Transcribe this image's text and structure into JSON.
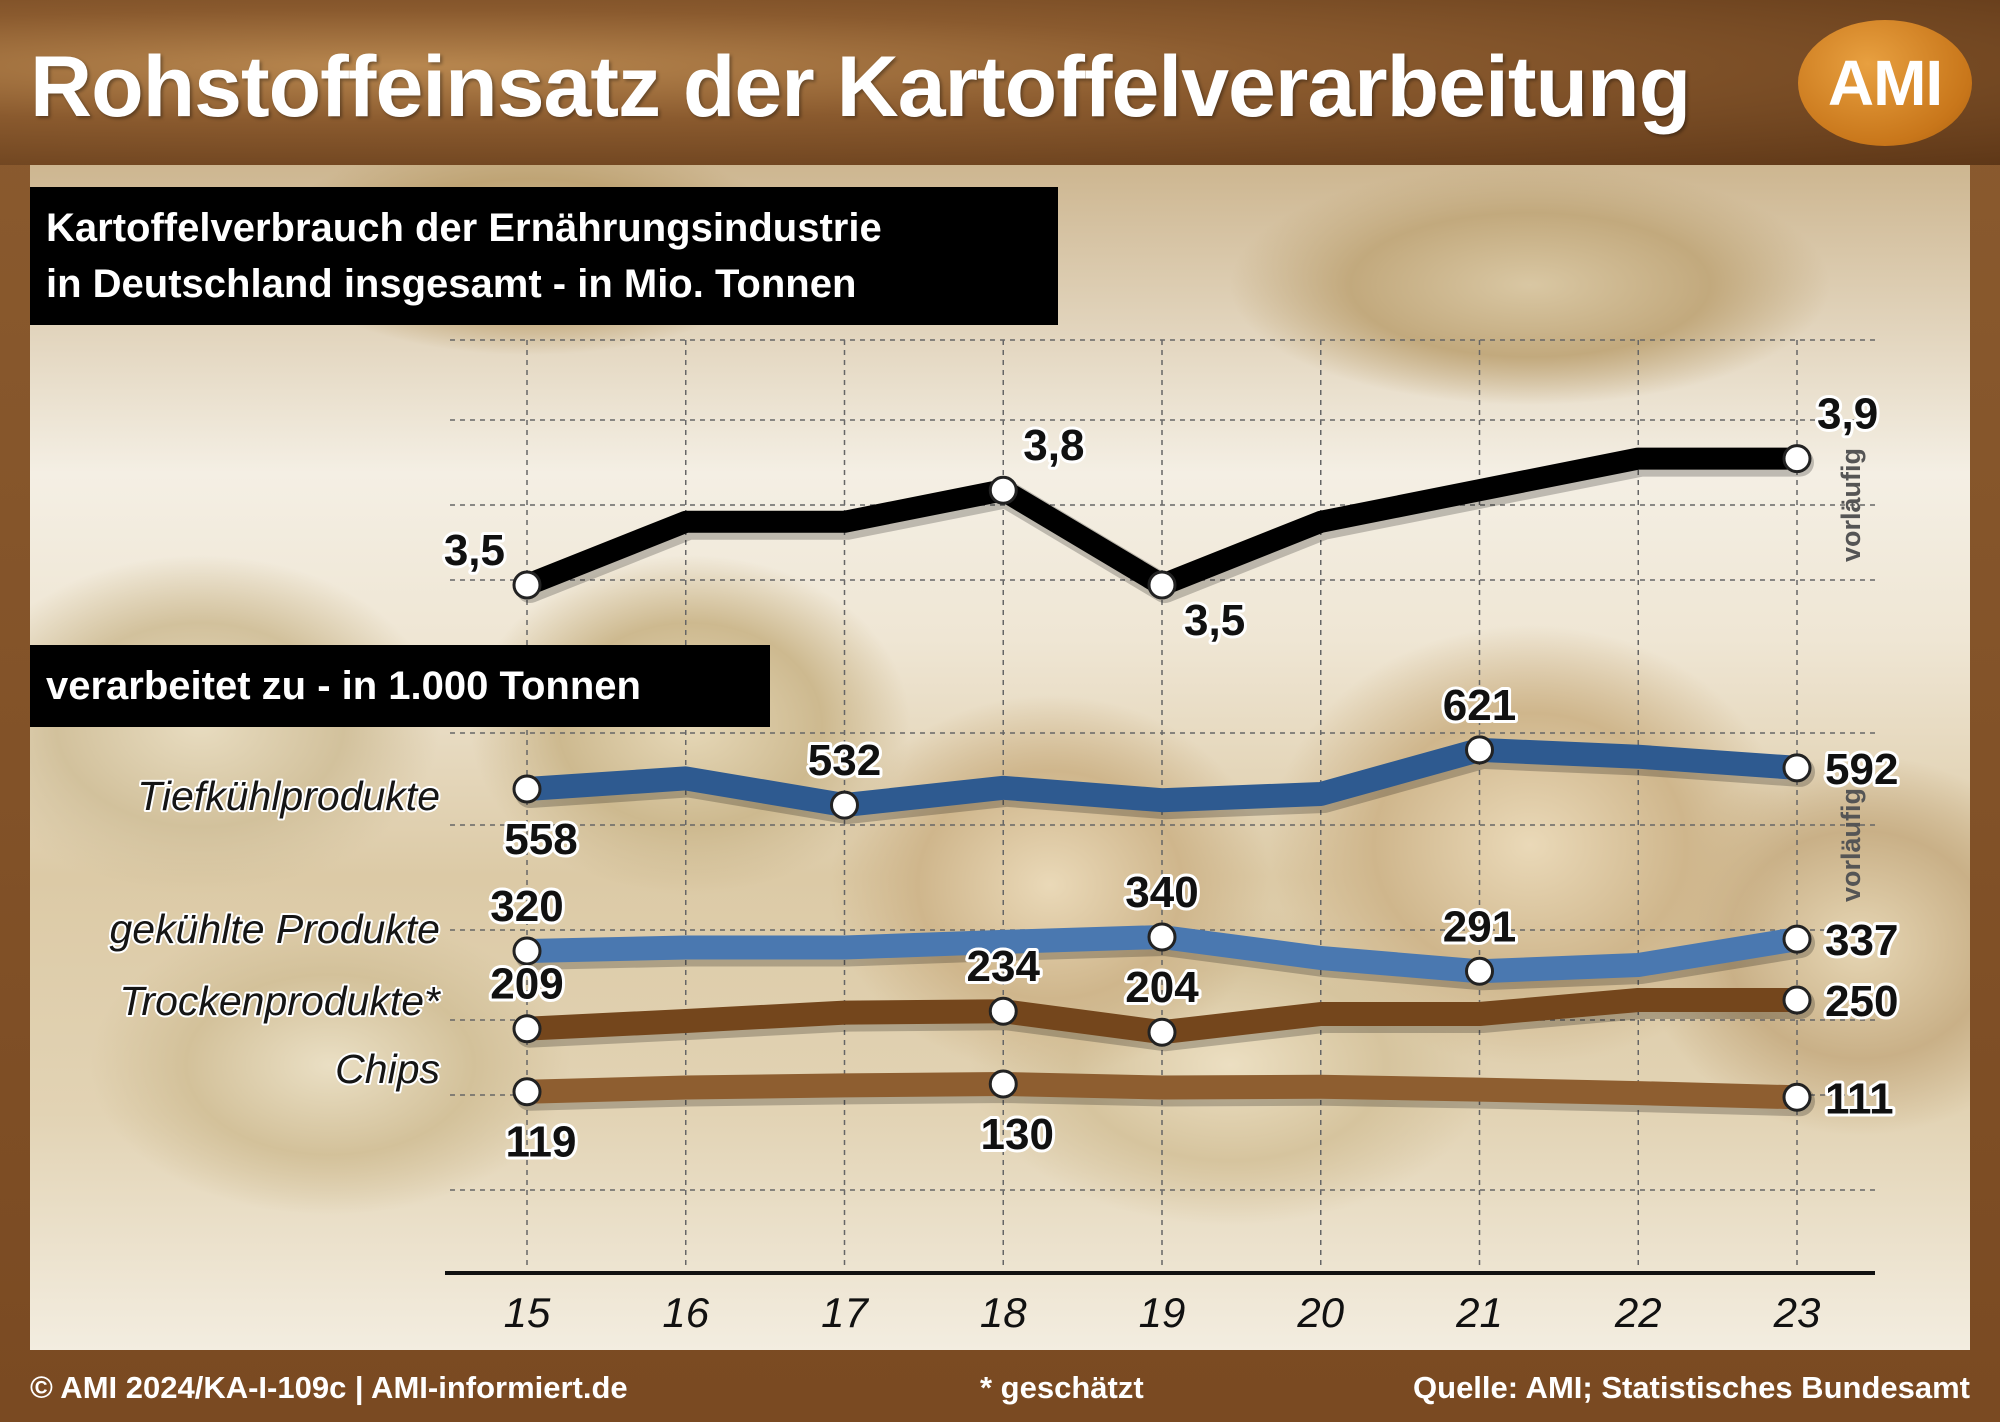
{
  "title": "Rohstoffeinsatz der Kartoffelverarbeitung",
  "logo": "AMI",
  "box_total": {
    "line1": "Kartoffelverbrauch der Ernährungsindustrie",
    "line2": "in Deutschland insgesamt - in Mio. Tonnen"
  },
  "box_processed": "verarbeitet zu - in 1.000 Tonnen",
  "footer": {
    "left": "© AMI 2024/KA-I-109c | AMI-informiert.de",
    "center": "* geschätzt",
    "right": "Quelle: AMI; Statistisches Bundesamt"
  },
  "colors": {
    "total": "#000000",
    "tiefkuehl": "#2e5a90",
    "gekuehlt": "#4a78b0",
    "trocken": "#74461c",
    "chips": "#8e5e30"
  },
  "chart_data": {
    "type": "line",
    "x": [
      "15",
      "16",
      "17",
      "18",
      "19",
      "20",
      "21",
      "22",
      "23"
    ],
    "provisional_note": "vorläufig",
    "total": {
      "values": [
        3.5,
        3.7,
        3.7,
        3.8,
        3.5,
        3.7,
        3.8,
        3.9,
        3.9
      ],
      "labels": [
        {
          "index": 0,
          "text": "3,5",
          "pos": "left"
        },
        {
          "index": 3,
          "text": "3,8",
          "pos": "above-right"
        },
        {
          "index": 4,
          "text": "3,5",
          "pos": "below-right"
        },
        {
          "index": 8,
          "text": "3,9",
          "pos": "above-right"
        }
      ],
      "marker_indices": [
        0,
        3,
        4,
        8
      ]
    },
    "series": [
      {
        "key": "tiefkuehl",
        "name": "Tiefkühlprodukte",
        "values": [
          558,
          575,
          532,
          560,
          540,
          550,
          621,
          610,
          592
        ],
        "labels": [
          {
            "index": 0,
            "text": "558",
            "pos": "below"
          },
          {
            "index": 2,
            "text": "532",
            "pos": "above"
          },
          {
            "index": 6,
            "text": "621",
            "pos": "above"
          },
          {
            "index": 8,
            "text": "592",
            "pos": "right"
          }
        ],
        "marker_indices": [
          0,
          2,
          6,
          8
        ]
      },
      {
        "key": "gekuehlt",
        "name": "gekühlte Produkte",
        "values": [
          320,
          325,
          325,
          333,
          340,
          310,
          291,
          300,
          337
        ],
        "labels": [
          {
            "index": 0,
            "text": "320",
            "pos": "above"
          },
          {
            "index": 4,
            "text": "340",
            "pos": "above"
          },
          {
            "index": 6,
            "text": "291",
            "pos": "above"
          },
          {
            "index": 8,
            "text": "337",
            "pos": "right"
          }
        ],
        "marker_indices": [
          0,
          4,
          6,
          8
        ]
      },
      {
        "key": "trocken",
        "name": "Trockenprodukte*",
        "values": [
          209,
          220,
          232,
          234,
          204,
          230,
          230,
          250,
          250
        ],
        "labels": [
          {
            "index": 0,
            "text": "209",
            "pos": "above"
          },
          {
            "index": 3,
            "text": "234",
            "pos": "above"
          },
          {
            "index": 4,
            "text": "204",
            "pos": "above"
          },
          {
            "index": 8,
            "text": "250",
            "pos": "right"
          }
        ],
        "marker_indices": [
          0,
          3,
          4,
          8
        ]
      },
      {
        "key": "chips",
        "name": "Chips",
        "values": [
          119,
          125,
          128,
          130,
          125,
          126,
          122,
          117,
          111
        ],
        "labels": [
          {
            "index": 0,
            "text": "119",
            "pos": "below"
          },
          {
            "index": 3,
            "text": "130",
            "pos": "below"
          },
          {
            "index": 8,
            "text": "111",
            "pos": "right"
          }
        ],
        "marker_indices": [
          0,
          3,
          8
        ]
      }
    ]
  }
}
